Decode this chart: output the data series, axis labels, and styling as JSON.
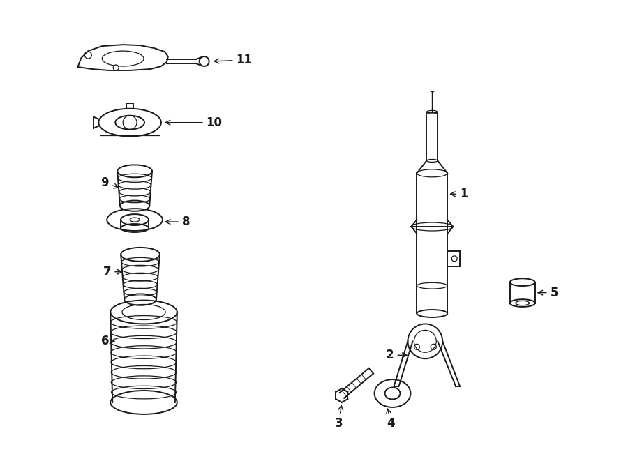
{
  "bg_color": "#ffffff",
  "line_color": "#1a1a1a",
  "line_width": 1.4,
  "thin_line": 0.9,
  "fig_width": 9.0,
  "fig_height": 6.61,
  "dpi": 100
}
